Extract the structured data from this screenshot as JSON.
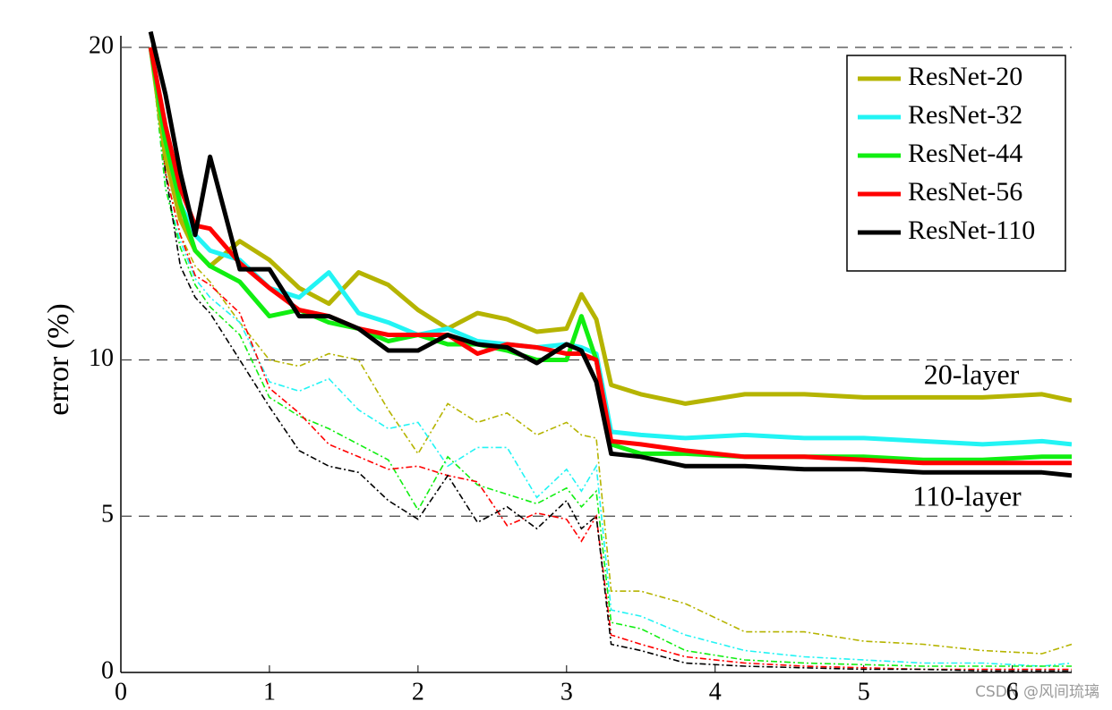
{
  "chart_data": {
    "type": "line",
    "y_label": "error (%)",
    "x": [
      0.2,
      0.3,
      0.4,
      0.5,
      0.6,
      0.8,
      1.0,
      1.2,
      1.4,
      1.6,
      1.8,
      2.0,
      2.2,
      2.4,
      2.6,
      2.8,
      3.0,
      3.1,
      3.2,
      3.3,
      3.5,
      3.8,
      4.2,
      4.6,
      5.0,
      5.4,
      5.8,
      6.2,
      6.4
    ],
    "series": [
      {
        "name": "ResNet-20",
        "color": "#b5b400",
        "values": [
          20,
          16.5,
          14.5,
          13.5,
          13,
          13.8,
          13.2,
          12.3,
          11.8,
          12.8,
          12.4,
          11.6,
          11.0,
          11.5,
          11.3,
          10.9,
          11.0,
          12.1,
          11.3,
          9.2,
          8.9,
          8.6,
          8.9,
          8.9,
          8.8,
          8.8,
          8.8,
          8.9,
          8.7
        ],
        "train_values": [
          20,
          16,
          14,
          13,
          12.5,
          11.2,
          10.0,
          9.8,
          10.2,
          10.0,
          8.4,
          7.0,
          8.6,
          8.0,
          8.3,
          7.6,
          8.0,
          7.6,
          7.5,
          2.6,
          2.6,
          2.2,
          1.3,
          1.3,
          1.0,
          0.9,
          0.7,
          0.6,
          0.9
        ]
      },
      {
        "name": "ResNet-32",
        "color": "#22f4f4",
        "values": [
          20,
          17,
          15,
          14,
          13.5,
          13.2,
          12.3,
          12.0,
          12.8,
          11.5,
          11.2,
          10.8,
          11.0,
          10.6,
          10.5,
          10.4,
          10.5,
          10.4,
          10.2,
          7.7,
          7.6,
          7.5,
          7.6,
          7.5,
          7.5,
          7.4,
          7.3,
          7.4,
          7.3
        ],
        "train_values": [
          20,
          15.5,
          13.8,
          12.6,
          12.0,
          11.2,
          9.3,
          9.0,
          9.4,
          8.4,
          7.8,
          8.0,
          6.6,
          7.2,
          7.2,
          5.6,
          6.5,
          5.8,
          6.6,
          2.0,
          1.8,
          1.2,
          0.7,
          0.5,
          0.4,
          0.3,
          0.3,
          0.2,
          0.3
        ]
      },
      {
        "name": "ResNet-44",
        "color": "#11ee11",
        "values": [
          20,
          17,
          15,
          13.5,
          13.0,
          12.5,
          11.4,
          11.6,
          11.2,
          11.0,
          10.6,
          10.8,
          10.5,
          10.5,
          10.3,
          10.0,
          10.0,
          11.4,
          10.0,
          7.3,
          7.0,
          7.0,
          6.9,
          6.9,
          6.9,
          6.8,
          6.8,
          6.9,
          6.9
        ],
        "train_values": [
          20,
          15.5,
          13.6,
          12.4,
          11.7,
          10.8,
          8.8,
          8.2,
          7.8,
          7.3,
          6.8,
          5.2,
          6.9,
          6.0,
          5.7,
          5.4,
          5.9,
          5.3,
          5.8,
          1.6,
          1.4,
          0.7,
          0.4,
          0.3,
          0.25,
          0.2,
          0.2,
          0.2,
          0.2
        ]
      },
      {
        "name": "ResNet-56",
        "color": "#ff0000",
        "values": [
          20,
          17.5,
          15.5,
          14.3,
          14.2,
          13.1,
          12.3,
          11.6,
          11.4,
          11.0,
          10.8,
          10.8,
          10.8,
          10.2,
          10.5,
          10.4,
          10.2,
          10.2,
          10.0,
          7.4,
          7.3,
          7.1,
          6.9,
          6.9,
          6.8,
          6.7,
          6.7,
          6.7,
          6.7
        ],
        "train_values": [
          20,
          16,
          14,
          12.7,
          12.4,
          11.5,
          9.1,
          8.3,
          7.3,
          6.9,
          6.5,
          6.6,
          6.3,
          6.1,
          4.7,
          5.1,
          4.9,
          4.2,
          5.0,
          1.2,
          0.9,
          0.5,
          0.3,
          0.2,
          0.15,
          0.1,
          0.1,
          0.1,
          0.1
        ]
      },
      {
        "name": "ResNet-110",
        "color": "#000000",
        "values": [
          20.5,
          18.5,
          16.0,
          14.0,
          16.5,
          12.9,
          12.9,
          11.4,
          11.4,
          11.0,
          10.3,
          10.3,
          10.8,
          10.5,
          10.4,
          9.9,
          10.5,
          10.3,
          9.3,
          7.0,
          6.9,
          6.6,
          6.6,
          6.5,
          6.5,
          6.4,
          6.4,
          6.4,
          6.3
        ],
        "train_values": [
          20.5,
          16,
          13,
          12,
          11.5,
          10.0,
          8.5,
          7.1,
          6.6,
          6.4,
          5.5,
          4.9,
          6.3,
          4.8,
          5.3,
          4.6,
          5.5,
          4.6,
          5.0,
          0.9,
          0.7,
          0.3,
          0.2,
          0.15,
          0.1,
          0.1,
          0.05,
          0.05,
          0.05
        ]
      }
    ],
    "xlim": [
      0,
      6.4
    ],
    "ylim": [
      0,
      20
    ],
    "xticks": [
      0,
      1,
      2,
      3,
      4,
      5,
      6
    ],
    "yticks": [
      0,
      5,
      10,
      20
    ],
    "grid": true,
    "legend": "upper right",
    "annotations": [
      "20-layer",
      "110-layer"
    ],
    "watermark": "CSDN @风间琉璃"
  }
}
